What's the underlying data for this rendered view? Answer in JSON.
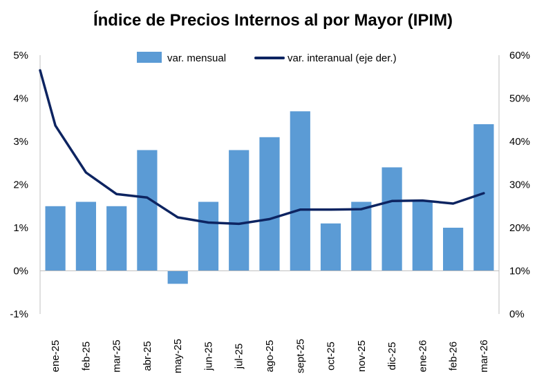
{
  "chart_data": {
    "type": "bar",
    "title": "Índice de Precios Internos al por Mayor (IPIM)",
    "categories": [
      "ene-25",
      "feb-25",
      "mar-25",
      "abr-25",
      "may-25",
      "jun-25",
      "jul-25",
      "ago-25",
      "sept-25",
      "oct-25",
      "nov-25",
      "dic-25",
      "ene-26",
      "feb-26",
      "mar-26"
    ],
    "series": [
      {
        "name": "var. mensual",
        "type": "bar",
        "axis": "left",
        "color": "#5B9BD5",
        "values": [
          1.5,
          1.6,
          1.5,
          2.8,
          -0.3,
          1.6,
          2.8,
          3.1,
          3.7,
          1.1,
          1.6,
          2.4,
          1.6,
          1.0,
          3.4
        ]
      },
      {
        "name": "var. interanual (eje der.)",
        "type": "line",
        "axis": "right",
        "color": "#0D2461",
        "start_value": 56.5,
        "values": [
          43.7,
          32.8,
          27.8,
          27.0,
          22.4,
          21.2,
          20.9,
          22.0,
          24.2,
          24.2,
          24.3,
          26.2,
          26.3,
          25.6,
          28.0
        ]
      }
    ],
    "y_left": {
      "ylim": [
        -1,
        5
      ],
      "ticks": [
        -1,
        0,
        1,
        2,
        3,
        4,
        5
      ],
      "tick_labels": [
        "-1%",
        "0%",
        "1%",
        "2%",
        "3%",
        "4%",
        "5%"
      ]
    },
    "y_right": {
      "ylim": [
        0,
        60
      ],
      "ticks": [
        0,
        10,
        20,
        30,
        40,
        50,
        60
      ],
      "tick_labels": [
        "0%",
        "10%",
        "20%",
        "30%",
        "40%",
        "50%",
        "60%"
      ]
    },
    "legend_position": "top-center",
    "grid": false
  }
}
